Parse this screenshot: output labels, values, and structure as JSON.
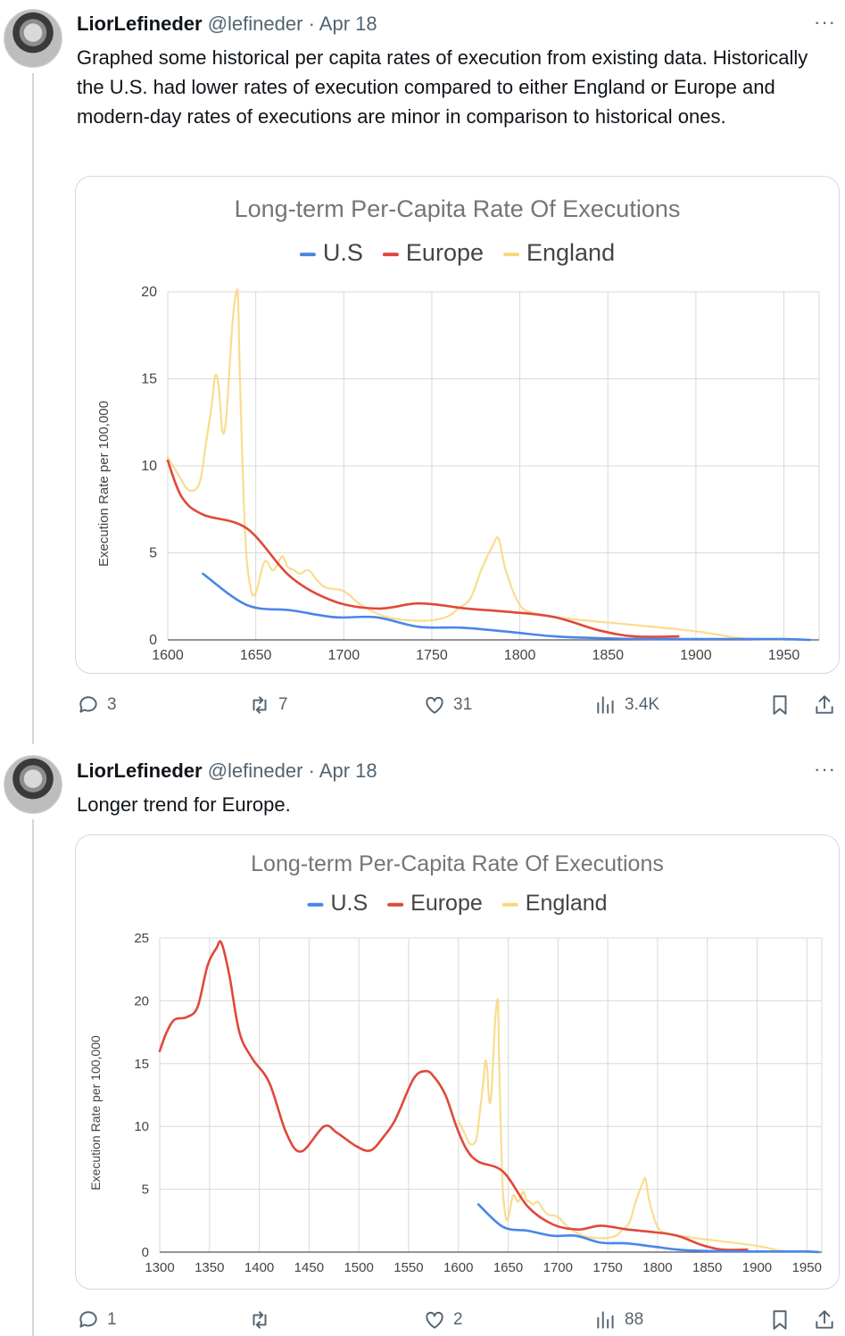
{
  "tweets": [
    {
      "author": "LiorLefineder",
      "handle": "@lefineder",
      "separator": "·",
      "date": "Apr 18",
      "more": "···",
      "text": "Graphed some historical per capita rates of execution from existing data. Historically the U.S. had lower rates of execution compared to either England or Europe and modern-day rates of executions are minor in comparison to historical ones.",
      "stats": {
        "replies": "3",
        "reposts": "7",
        "likes": "31",
        "views": "3.4K"
      }
    },
    {
      "author": "LiorLefineder",
      "handle": "@lefineder",
      "separator": "·",
      "date": "Apr 18",
      "more": "···",
      "text": "Longer trend for Europe.",
      "stats": {
        "replies": "1",
        "reposts": "",
        "likes": "2",
        "views": "88"
      }
    }
  ],
  "colors": {
    "us": "#4a86e8",
    "europe": "#e0483a",
    "england": "#f9d67a",
    "grid": "#d9d9d9",
    "muted": "#536471"
  },
  "chart_data": [
    {
      "type": "line",
      "title": "Long-term Per-Capita Rate Of Executions",
      "ylabel": "Execution Rate per  100,000",
      "xlabel": "",
      "xlim": [
        1600,
        1970
      ],
      "ylim": [
        0,
        20
      ],
      "xticks": [
        1600,
        1650,
        1700,
        1750,
        1800,
        1850,
        1900,
        1950
      ],
      "yticks": [
        0,
        5,
        10,
        15,
        20
      ],
      "grid": true,
      "legend": "top-center",
      "series": [
        {
          "name": "U.S",
          "color": "#4a86e8",
          "x": [
            1620,
            1645,
            1670,
            1695,
            1718,
            1743,
            1768,
            1795,
            1820,
            1845,
            1870,
            1900,
            1930,
            1950,
            1965
          ],
          "y": [
            3.8,
            2.0,
            1.7,
            1.3,
            1.3,
            0.75,
            0.7,
            0.45,
            0.2,
            0.1,
            0.05,
            0.05,
            0.05,
            0.05,
            0.0
          ]
        },
        {
          "name": "Europe",
          "color": "#e0483a",
          "x": [
            1600,
            1608,
            1620,
            1645,
            1670,
            1695,
            1720,
            1743,
            1770,
            1795,
            1820,
            1845,
            1865,
            1890
          ],
          "y": [
            10.3,
            8.2,
            7.2,
            6.4,
            3.6,
            2.2,
            1.8,
            2.1,
            1.8,
            1.6,
            1.3,
            0.55,
            0.2,
            0.2
          ]
        },
        {
          "name": "England",
          "color": "#f9d67a",
          "x": [
            1600,
            1606,
            1612,
            1618,
            1622,
            1625,
            1627,
            1629,
            1631,
            1633,
            1635,
            1637,
            1639,
            1640,
            1641,
            1644,
            1647,
            1650,
            1655,
            1660,
            1665,
            1668,
            1672,
            1675,
            1680,
            1685,
            1690,
            1700,
            1710,
            1725,
            1745,
            1758,
            1765,
            1772,
            1778,
            1785,
            1788,
            1792,
            1800,
            1810,
            1830,
            1860,
            1900,
            1925,
            1950
          ],
          "y": [
            10.5,
            9.5,
            8.6,
            9.0,
            11.5,
            13.5,
            15.2,
            14.5,
            12.0,
            12.5,
            15.5,
            18.5,
            20.0,
            19.5,
            15.0,
            6.0,
            3.0,
            2.7,
            4.5,
            4.0,
            4.8,
            4.2,
            4.0,
            3.8,
            4.0,
            3.4,
            3.0,
            2.8,
            2.0,
            1.3,
            1.1,
            1.3,
            1.8,
            2.4,
            4.0,
            5.5,
            5.8,
            4.0,
            2.0,
            1.5,
            1.2,
            0.9,
            0.5,
            0.1,
            0.0
          ]
        }
      ]
    },
    {
      "type": "line",
      "title": "Long-term Per-Capita Rate Of Executions",
      "ylabel": "Execution Rate per  100,000",
      "xlabel": "",
      "xlim": [
        1300,
        1965
      ],
      "ylim": [
        0,
        25
      ],
      "xticks": [
        1300,
        1350,
        1400,
        1450,
        1500,
        1550,
        1600,
        1650,
        1700,
        1750,
        1800,
        1850,
        1900,
        1950
      ],
      "yticks": [
        0,
        5,
        10,
        15,
        20,
        25
      ],
      "grid": true,
      "legend": "top-center",
      "series": [
        {
          "name": "U.S",
          "color": "#4a86e8",
          "x": [
            1620,
            1645,
            1670,
            1695,
            1718,
            1743,
            1768,
            1795,
            1820,
            1845,
            1870,
            1900,
            1930,
            1950,
            1962
          ],
          "y": [
            3.8,
            2.0,
            1.7,
            1.3,
            1.3,
            0.75,
            0.7,
            0.45,
            0.2,
            0.1,
            0.05,
            0.05,
            0.05,
            0.05,
            0.0
          ]
        },
        {
          "name": "Europe",
          "color": "#e0483a",
          "x": [
            1300,
            1307,
            1315,
            1327,
            1338,
            1348,
            1357,
            1362,
            1370,
            1380,
            1393,
            1410,
            1427,
            1442,
            1465,
            1478,
            1498,
            1512,
            1525,
            1537,
            1555,
            1567,
            1575,
            1587,
            1598,
            1608,
            1620,
            1645,
            1670,
            1695,
            1720,
            1743,
            1770,
            1795,
            1820,
            1845,
            1865,
            1890
          ],
          "y": [
            16.0,
            17.5,
            18.5,
            18.7,
            19.5,
            22.8,
            24.2,
            24.6,
            22.0,
            17.5,
            15.4,
            13.5,
            9.5,
            8.0,
            10.0,
            9.5,
            8.4,
            8.1,
            9.2,
            10.6,
            13.8,
            14.4,
            14.0,
            12.5,
            10.0,
            8.2,
            7.2,
            6.4,
            3.6,
            2.2,
            1.8,
            2.1,
            1.8,
            1.6,
            1.3,
            0.55,
            0.2,
            0.2
          ]
        },
        {
          "name": "England",
          "color": "#f9d67a",
          "x": [
            1600,
            1606,
            1612,
            1618,
            1622,
            1625,
            1627,
            1629,
            1631,
            1633,
            1635,
            1637,
            1639,
            1640,
            1641,
            1644,
            1647,
            1650,
            1655,
            1660,
            1665,
            1668,
            1672,
            1675,
            1680,
            1685,
            1690,
            1700,
            1710,
            1725,
            1745,
            1758,
            1765,
            1772,
            1778,
            1785,
            1788,
            1792,
            1800,
            1810,
            1830,
            1860,
            1900,
            1925,
            1950
          ],
          "y": [
            10.5,
            9.5,
            8.6,
            9.0,
            11.5,
            13.5,
            15.2,
            14.5,
            12.0,
            12.5,
            15.5,
            18.5,
            20.0,
            19.5,
            15.0,
            6.0,
            3.0,
            2.7,
            4.5,
            4.0,
            4.8,
            4.2,
            4.0,
            3.8,
            4.0,
            3.4,
            3.0,
            2.8,
            2.0,
            1.3,
            1.1,
            1.3,
            1.8,
            2.4,
            4.0,
            5.5,
            5.8,
            4.0,
            2.0,
            1.5,
            1.2,
            0.9,
            0.5,
            0.1,
            0.0
          ]
        }
      ]
    }
  ]
}
